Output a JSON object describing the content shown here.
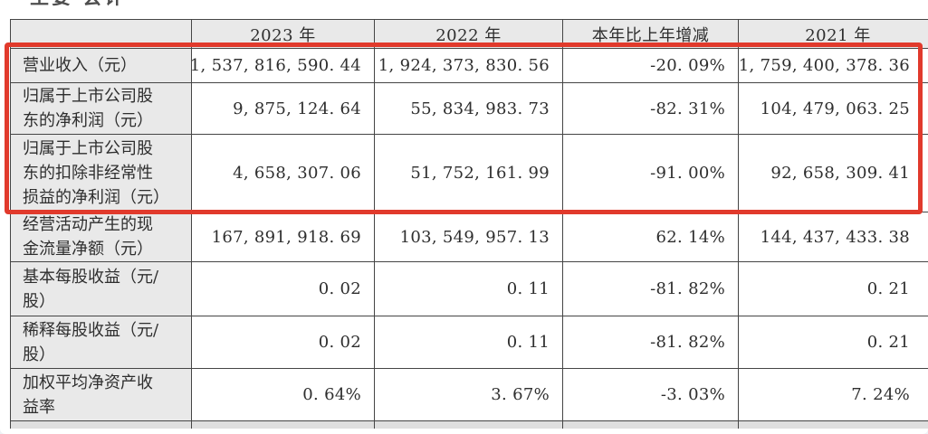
{
  "page": {
    "partial_top_text": "主要 会计"
  },
  "highlight": {
    "color": "#e13a2c",
    "covers_rows": [
      "营业收入（元）",
      "归属于上市公司股东的净利润（元）",
      "归属于上市公司股东的扣除非经常性损益的净利润（元）"
    ]
  },
  "colors": {
    "table_border": "#454545",
    "header_and_label_bg": "#e9e9e9",
    "value_bg": "#ffffff",
    "truncated_row_bg": "#dfdfdf",
    "text": "#2e2e2e"
  },
  "table": {
    "columns": [
      "",
      "2023 年",
      "2022 年",
      "本年比上年增减",
      "2021 年"
    ],
    "rows": [
      {
        "label": "营业收入（元）",
        "values": [
          "1,537,816,590.44",
          "1,924,373,830.56",
          "-20.09%",
          "1,759,400,378.36"
        ],
        "highlighted": true
      },
      {
        "label": "归属于上市公司股东的净利润（元）",
        "values": [
          "9,875,124.64",
          "55,834,983.73",
          "-82.31%",
          "104,479,063.25"
        ],
        "highlighted": true
      },
      {
        "label": "归属于上市公司股东的扣除非经常性损益的净利润（元）",
        "values": [
          "4,658,307.06",
          "51,752,161.99",
          "-91.00%",
          "92,658,309.41"
        ],
        "highlighted": true
      },
      {
        "label": "经营活动产生的现金流量净额（元）",
        "values": [
          "167,891,918.69",
          "103,549,957.13",
          "62.14%",
          "144,437,433.38"
        ],
        "highlighted": false
      },
      {
        "label": "基本每股收益（元/股）",
        "values": [
          "0.02",
          "0.11",
          "-81.82%",
          "0.21"
        ],
        "highlighted": false
      },
      {
        "label": "稀释每股收益（元/股）",
        "values": [
          "0.02",
          "0.11",
          "-81.82%",
          "0.21"
        ],
        "highlighted": false
      },
      {
        "label": "加权平均净资产收益率",
        "values": [
          "0.64%",
          "3.67%",
          "-3.03%",
          "7.24%"
        ],
        "highlighted": false
      }
    ]
  }
}
